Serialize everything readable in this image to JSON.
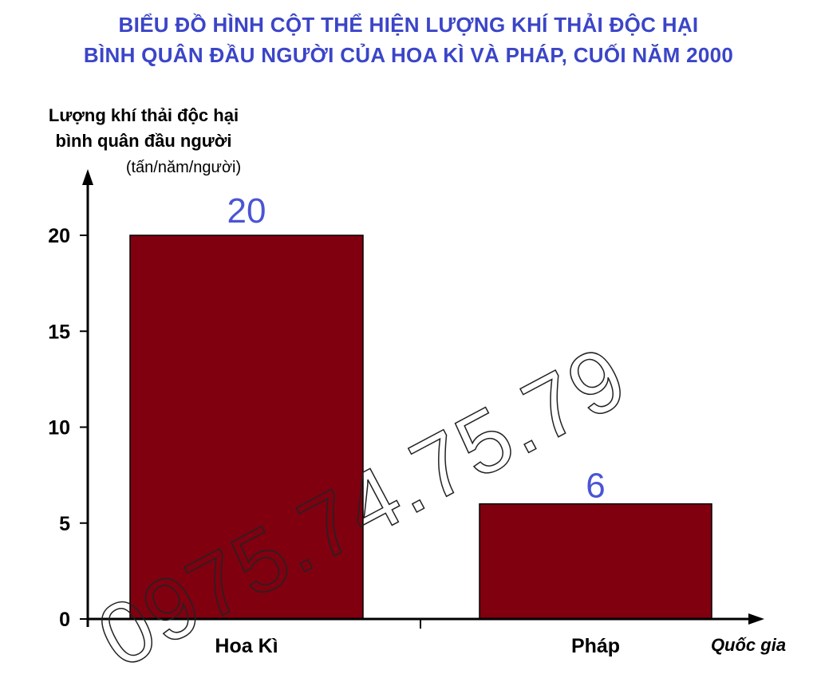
{
  "title_line1": "BIỂU ĐỒ HÌNH CỘT THỂ HIỆN LƯỢNG KHÍ THẢI ĐỘC HẠI",
  "title_line2": "BÌNH QUÂN ĐẦU NGƯỜI CỦA HOA KÌ VÀ PHÁP, CUỐI NĂM 2000",
  "watermark": "0975.74.75.79",
  "colors": {
    "title": "#3b45c8",
    "bar": "#800010",
    "value_label": "#4a55d4",
    "axis": "#000000"
  },
  "chart_data": {
    "type": "bar",
    "ylabel_line1": "Lượng khí thải độc hại",
    "ylabel_line2": "bình quân đầu người",
    "yunit": "(tấn/năm/người)",
    "xlabel": "Quốc gia",
    "categories": [
      "Hoa Kì",
      "Pháp"
    ],
    "values": [
      20,
      6
    ],
    "data_labels": [
      "20",
      "6"
    ],
    "yticks": [
      0,
      5,
      10,
      15,
      20
    ],
    "ylim": [
      0,
      20
    ],
    "grid": false,
    "legend": "none"
  }
}
